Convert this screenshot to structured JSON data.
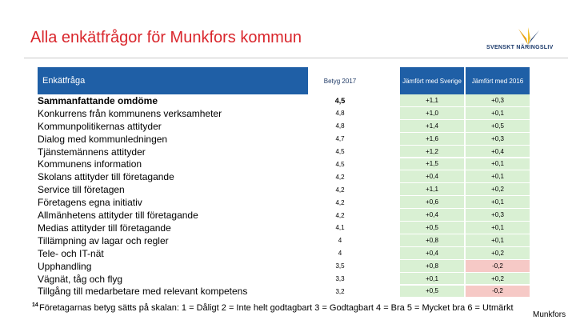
{
  "header": {
    "title": "Alla enkätfrågor för Munkfors kommun",
    "logo": "SVENSKT NÄRINGSLIV"
  },
  "table": {
    "columns": [
      "Enkätfråga",
      "Betyg 2017",
      "Jämfört med Sverige",
      "Jämfört med 2016"
    ],
    "rows": [
      [
        "Sammanfattande omdöme",
        "4,5",
        "+1,1",
        "+0,3"
      ],
      [
        "Konkurrens från kommunens verksamheter",
        "4,8",
        "+1,0",
        "+0,1"
      ],
      [
        "Kommunpolitikernas attityder",
        "4,8",
        "+1,4",
        "+0,5"
      ],
      [
        "Dialog med kommunledningen",
        "4,7",
        "+1,6",
        "+0,3"
      ],
      [
        "Tjänstemännens attityder",
        "4,5",
        "+1,2",
        "+0,4"
      ],
      [
        "Kommunens information",
        "4,5",
        "+1,5",
        "+0,1"
      ],
      [
        "Skolans attityder till företagande",
        "4,2",
        "+0,4",
        "+0,1"
      ],
      [
        "Service till företagen",
        "4,2",
        "+1,1",
        "+0,2"
      ],
      [
        "Företagens egna initiativ",
        "4,2",
        "+0,6",
        "+0,1"
      ],
      [
        "Allmänhetens attityder till företagande",
        "4,2",
        "+0,4",
        "+0,3"
      ],
      [
        "Medias attityder till företagande",
        "4,1",
        "+0,5",
        "+0,1"
      ],
      [
        "Tillämpning av lagar och regler",
        "4",
        "+0,8",
        "+0,1"
      ],
      [
        "Tele- och IT-nät",
        "4",
        "+0,4",
        "+0,2"
      ],
      [
        "Upphandling",
        "3,5",
        "+0,8",
        "-0,2"
      ],
      [
        "Vägnät, tåg och flyg",
        "3,3",
        "+0,1",
        "+0,2"
      ],
      [
        "Tillgång till medarbetare med relevant kompetens",
        "3,2",
        "+0,5",
        "-0,2"
      ]
    ]
  },
  "footer": {
    "page": "14",
    "note": "Företagarnas betyg sätts på skalan: 1 = Dåligt 2 = Inte helt godtagbart 3 = Godtagbart 4 = Bra 5 = Mycket bra 6 = Utmärkt",
    "place": "Munkfors"
  }
}
